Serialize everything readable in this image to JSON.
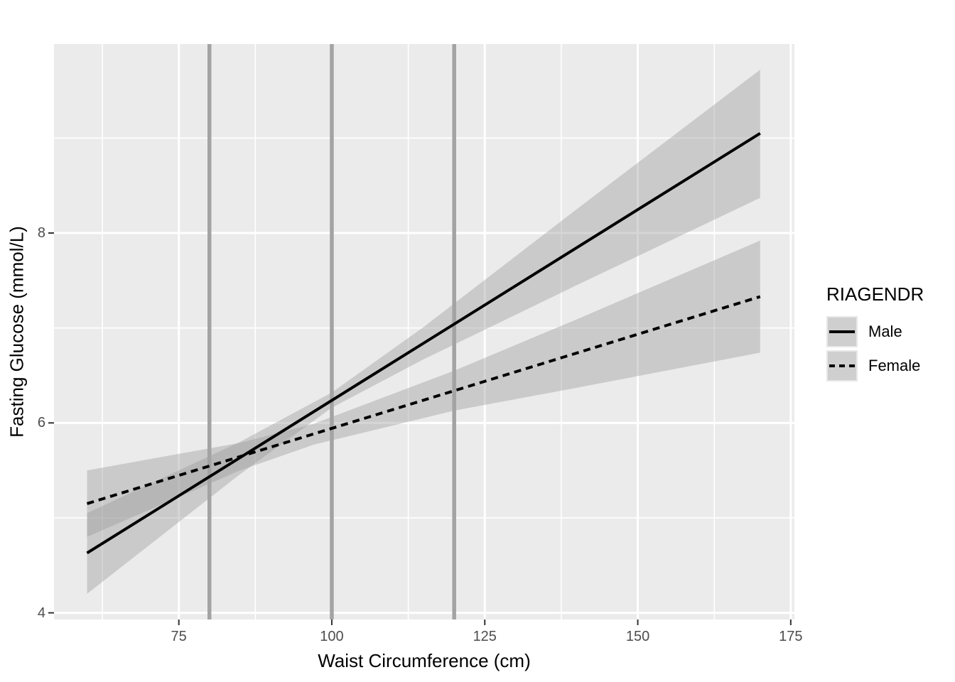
{
  "chart_data": {
    "type": "line",
    "title": "",
    "xlabel": "Waist Circumference (cm)",
    "ylabel": "Fasting Glucose (mmol/L)",
    "xlim": [
      54.6,
      175.6
    ],
    "ylim": [
      3.93,
      9.99
    ],
    "x_major_ticks": [
      75,
      100,
      125,
      150,
      175
    ],
    "x_tick_labels": [
      "75",
      "100",
      "125",
      "150",
      "175"
    ],
    "x_minor_ticks": [
      62.5,
      87.5,
      112.5,
      137.5,
      162.5
    ],
    "y_major_ticks": [
      4,
      6,
      8
    ],
    "y_tick_labels": [
      "4",
      "6",
      "8"
    ],
    "y_minor_ticks": [
      5,
      7,
      9
    ],
    "grid": true,
    "panel_bg": "#ebebeb",
    "grid_color": "#ffffff",
    "tick_mark_color": "#333333",
    "tick_label_color": "#4d4d4d",
    "ribbon_fill": "rgba(153,153,153,0.4)",
    "reference_vlines": {
      "x": [
        80,
        100,
        120
      ],
      "color": "#a3a3a3",
      "width": 5.5
    },
    "series": [
      {
        "name": "Male",
        "linetype": "solid",
        "color": "#000000",
        "x": [
          60,
          170
        ],
        "y": [
          4.63,
          9.05
        ],
        "ci": {
          "x": [
            60,
            85,
            100,
            115,
            140,
            170
          ],
          "upper": [
            5.05,
            5.8,
            6.32,
            7.01,
            8.25,
            9.72
          ],
          "lower": [
            4.2,
            5.46,
            6.16,
            6.67,
            7.45,
            8.37
          ]
        }
      },
      {
        "name": "Female",
        "linetype": "dashed",
        "color": "#000000",
        "x": [
          60,
          170
        ],
        "y": [
          5.15,
          7.33
        ],
        "ci": {
          "x": [
            60,
            85,
            97,
            120,
            140,
            170
          ],
          "upper": [
            5.5,
            5.79,
            5.99,
            6.55,
            7.09,
            7.92
          ],
          "lower": [
            4.8,
            5.5,
            5.77,
            6.13,
            6.37,
            6.74
          ]
        }
      }
    ],
    "legend": {
      "title": "RIAGENDR",
      "position": "right",
      "entries": [
        {
          "label": "Male",
          "linetype": "solid"
        },
        {
          "label": "Female",
          "linetype": "dashed"
        }
      ]
    }
  }
}
